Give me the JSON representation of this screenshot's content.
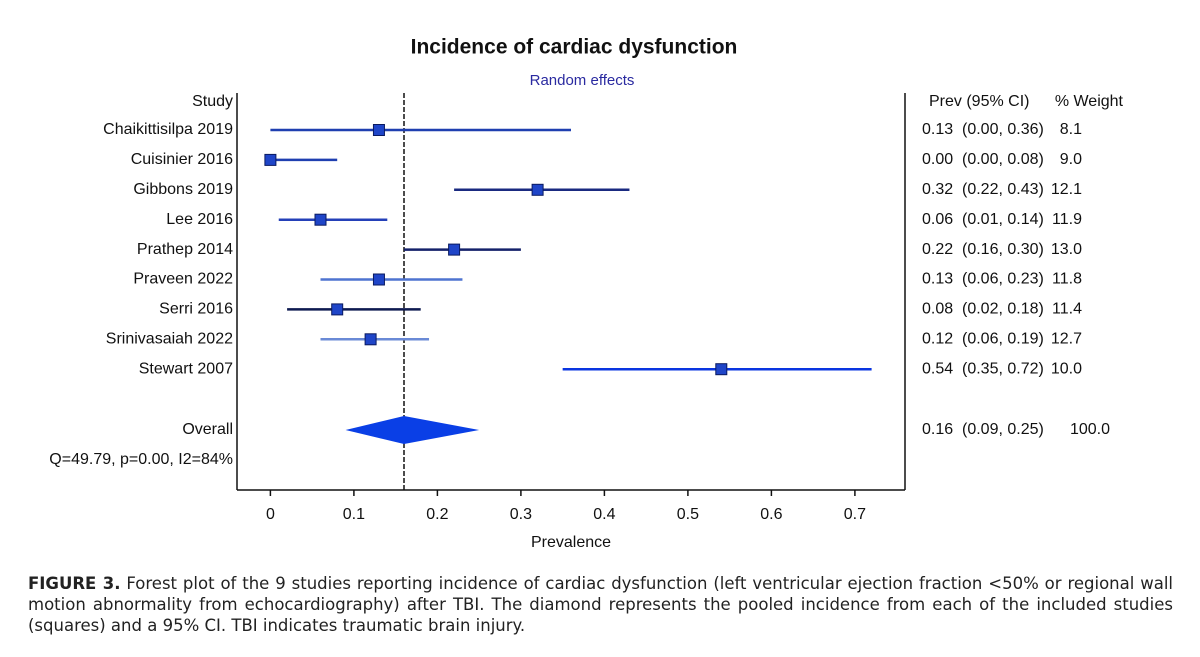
{
  "chart_data": {
    "type": "forest",
    "title": "Incidence of cardiac dysfunction",
    "subtitle": "Random effects",
    "study_header": "Study",
    "estimate_header": "Prev (95% CI)",
    "weight_header": "% Weight",
    "x_label": "Prevalence",
    "categories": [
      "Chaikittisilpa 2019",
      "Cuisinier 2016",
      "Gibbons 2019",
      "Lee 2016",
      "Prathep 2014",
      "Praveen 2022",
      "Serri 2016",
      "Srinivasaiah 2022",
      "Stewart 2007"
    ],
    "values": [
      0.13,
      0,
      0.32,
      0.06,
      0.22,
      0.13,
      0.08,
      0.12,
      0.54
    ],
    "value_labels": [
      "0.13",
      "0.00",
      "0.32",
      "0.06",
      "0.22",
      "0.13",
      "0.08",
      "0.12",
      "0.54"
    ],
    "lower": [
      0,
      0,
      0.22,
      0.01,
      0.16,
      0.06,
      0.02,
      0.06,
      0.35
    ],
    "upper": [
      0.36,
      0.08,
      0.43,
      0.14,
      0.3,
      0.23,
      0.18,
      0.19,
      0.72
    ],
    "ci_labels": [
      "(0.00, 0.36)",
      "(0.00, 0.08)",
      "(0.22, 0.43)",
      "(0.01, 0.14)",
      "(0.16, 0.30)",
      "(0.06, 0.23)",
      "(0.02, 0.18)",
      "(0.06, 0.19)",
      "(0.35, 0.72)"
    ],
    "weights": [
      8.1,
      9,
      12.1,
      11.9,
      13,
      11.8,
      11.4,
      12.7,
      10
    ],
    "weight_labels": [
      "8.1",
      "9.0",
      "12.1",
      "11.9",
      "13.0",
      "11.8",
      "11.4",
      "12.7",
      "10.0"
    ],
    "line_colors": [
      "#1f3fb0",
      "#1f3fb0",
      "#1a2a80",
      "#2440b8",
      "#14216a",
      "#4f74d0",
      "#0d1a50",
      "#6a8ad6",
      "#0a35e0"
    ],
    "marker_color": "#1f45c8",
    "overall": {
      "label": "Overall",
      "value": 0.16,
      "value_label": "0.16",
      "lower": 0.09,
      "upper": 0.25,
      "ci_label": "(0.09, 0.25)",
      "weight": 100,
      "weight_label": "100.0",
      "color": "#0a3fe6"
    },
    "heterogeneity": "Q=49.79, p=0.00, I2=84%",
    "xlim": [
      -0.04,
      0.76
    ],
    "xticks": [
      0,
      0.1,
      0.2,
      0.3,
      0.4,
      0.5,
      0.6,
      0.7
    ]
  },
  "caption": {
    "label": "FIGURE 3.",
    "text": "Forest plot of the 9 studies reporting incidence of cardiac dysfunction (left ventricular ejection fraction <50% or regional wall motion abnormality from echocardiography) after TBI. The diamond represents the pooled incidence from each of the included studies (squares) and a 95% CI. TBI indicates traumatic brain injury."
  }
}
